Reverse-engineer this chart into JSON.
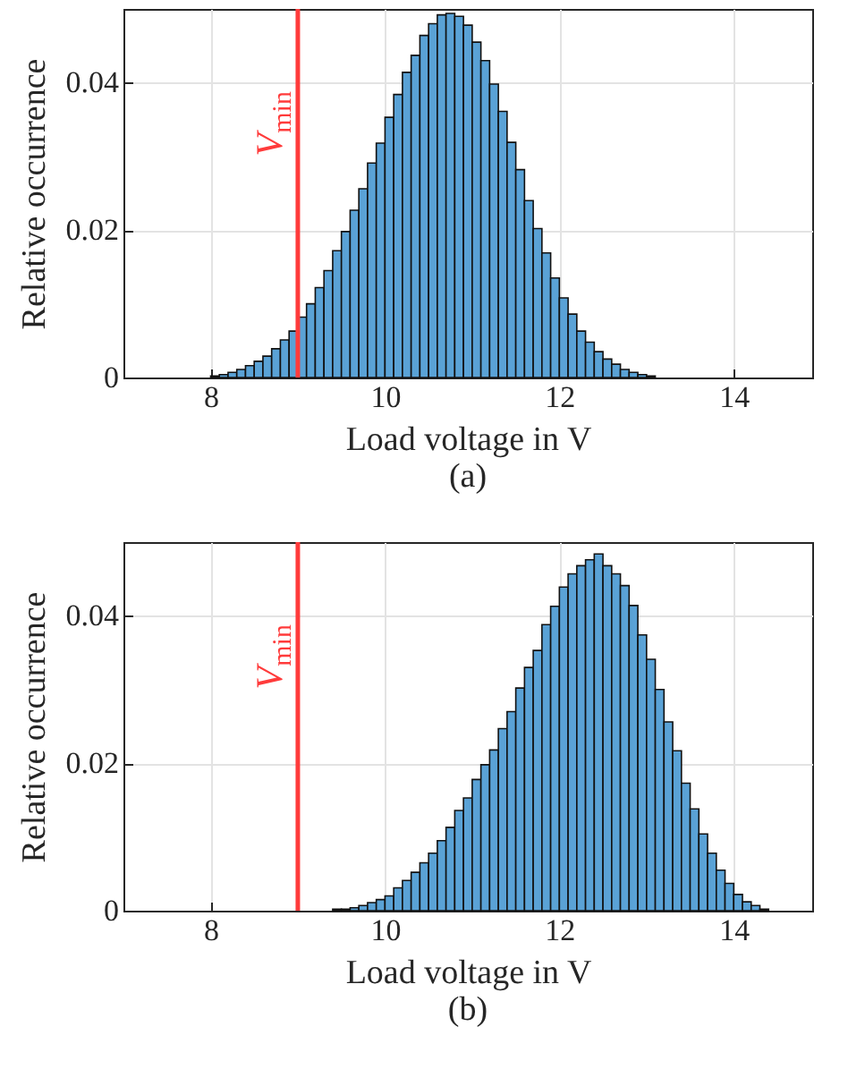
{
  "chart_data": [
    {
      "type": "histogram",
      "title": "(a)",
      "xlabel": "Load voltage in V",
      "ylabel": "Relative occurrence",
      "color": "#5aa2d6",
      "bins": [
        8.0,
        8.1,
        8.2,
        8.3,
        8.4,
        8.5,
        8.6,
        8.7,
        8.8,
        8.9,
        9.0,
        9.1,
        9.2,
        9.3,
        9.4,
        9.5,
        9.6,
        9.7,
        9.8,
        9.9,
        10.0,
        10.1,
        10.2,
        10.3,
        10.4,
        10.5,
        10.6,
        10.7,
        10.8,
        10.9,
        11.0,
        11.1,
        11.2,
        11.3,
        11.4,
        11.5,
        11.6,
        11.7,
        11.8,
        11.9,
        12.0,
        12.1,
        12.2,
        12.3,
        12.4,
        12.5,
        12.6,
        12.7,
        12.8,
        12.9,
        13.0,
        13.1
      ],
      "values": [
        0.0002,
        0.0004,
        0.0007,
        0.0011,
        0.0016,
        0.0022,
        0.0029,
        0.0039,
        0.0051,
        0.0063,
        0.0082,
        0.01,
        0.0122,
        0.0145,
        0.0172,
        0.0198,
        0.0227,
        0.0256,
        0.0291,
        0.0318,
        0.0353,
        0.0384,
        0.0414,
        0.0437,
        0.0464,
        0.048,
        0.0492,
        0.0494,
        0.049,
        0.0478,
        0.0455,
        0.043,
        0.0398,
        0.0361,
        0.0319,
        0.0282,
        0.024,
        0.0202,
        0.0169,
        0.0135,
        0.0108,
        0.0086,
        0.0063,
        0.0048,
        0.0035,
        0.0025,
        0.0018,
        0.0011,
        0.0007,
        0.0004,
        0.0002
      ],
      "xlim": [
        7,
        14.9
      ],
      "ylim": [
        0,
        0.05
      ],
      "xticks": [
        8,
        10,
        12,
        14
      ],
      "yticks": [
        0,
        0.02,
        0.04
      ],
      "grid": true,
      "ref_lines": [
        {
          "axis": "x",
          "value": 9,
          "label": "V$_{min}$",
          "color": "#ff3b3b"
        }
      ]
    },
    {
      "type": "histogram",
      "title": "(b)",
      "xlabel": "Load voltage in V",
      "ylabel": "Relative occurrence",
      "color": "#5aa2d6",
      "bins": [
        9.4,
        9.5,
        9.6,
        9.7,
        9.8,
        9.9,
        10.0,
        10.1,
        10.2,
        10.3,
        10.4,
        10.5,
        10.6,
        10.7,
        10.8,
        10.9,
        11.0,
        11.1,
        11.2,
        11.3,
        11.4,
        11.5,
        11.6,
        11.7,
        11.8,
        11.9,
        12.0,
        12.1,
        12.2,
        12.3,
        12.4,
        12.5,
        12.6,
        12.7,
        12.8,
        12.9,
        13.0,
        13.1,
        13.2,
        13.3,
        13.4,
        13.5,
        13.6,
        13.7,
        13.8,
        13.9,
        14.0,
        14.1,
        14.2,
        14.3,
        14.4
      ],
      "values": [
        0.0002,
        0.0002,
        0.0004,
        0.0007,
        0.0011,
        0.0015,
        0.002,
        0.0031,
        0.0041,
        0.0052,
        0.0065,
        0.0078,
        0.0095,
        0.0113,
        0.0136,
        0.0153,
        0.0178,
        0.0198,
        0.0218,
        0.0247,
        0.027,
        0.0302,
        0.033,
        0.0353,
        0.0388,
        0.0413,
        0.0439,
        0.0457,
        0.0468,
        0.0476,
        0.0484,
        0.0468,
        0.0457,
        0.0441,
        0.0414,
        0.0374,
        0.0341,
        0.03,
        0.0256,
        0.0217,
        0.0173,
        0.0138,
        0.0104,
        0.0078,
        0.0055,
        0.0037,
        0.0022,
        0.0012,
        0.0007,
        0.0002
      ],
      "xlim": [
        7,
        14.9
      ],
      "ylim": [
        0,
        0.05
      ],
      "xticks": [
        8,
        10,
        12,
        14
      ],
      "yticks": [
        0,
        0.02,
        0.04
      ],
      "grid": true,
      "ref_lines": [
        {
          "axis": "x",
          "value": 9,
          "label": "V$_{min}$",
          "color": "#ff3b3b"
        }
      ]
    }
  ]
}
